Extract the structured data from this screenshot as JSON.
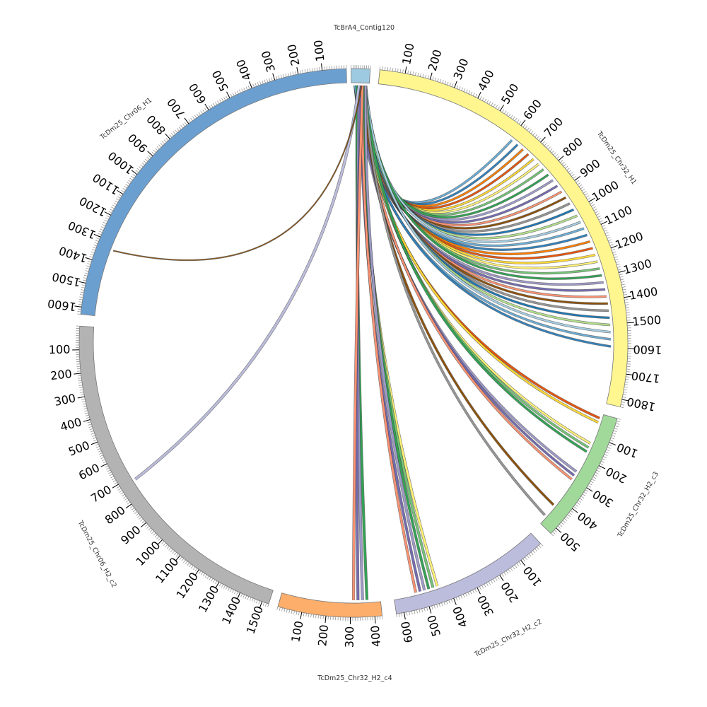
{
  "sequences": [
    {
      "name": "TcBrA4_Contig120",
      "color": "#9ecae1",
      "ticks": []
    },
    {
      "name": "TcDm25_Chr32_H1",
      "color": "#fff68f",
      "ticks": [
        "100",
        "200",
        "300",
        "400",
        "500",
        "600",
        "700",
        "800",
        "900",
        "1000",
        "1100",
        "1200",
        "1300",
        "1400",
        "1500",
        "1600",
        "1700",
        "1800"
      ]
    },
    {
      "name": "TcDm25_Chr32_H2_c3",
      "color": "#a1d99b",
      "ticks": [
        "100",
        "200",
        "300",
        "400",
        "500"
      ]
    },
    {
      "name": "TcDm25_Chr32_H2_c2",
      "color": "#bcbddc",
      "ticks": [
        "100",
        "200",
        "300",
        "400",
        "500",
        "600"
      ]
    },
    {
      "name": "TcDm25_Chr32_H2_c4",
      "color": "#fdae6b",
      "ticks": [
        "100",
        "200",
        "300",
        "400"
      ]
    },
    {
      "name": "TcDm25_Chr06_H2_c2",
      "color": "#b3b3b3",
      "ticks": [
        "100",
        "200",
        "300",
        "400",
        "500",
        "600",
        "700",
        "800",
        "900",
        "1000",
        "1100",
        "1200",
        "1300",
        "1400",
        "1500"
      ]
    },
    {
      "name": "TcDm25_Chr06_H1",
      "color": "#6a9fd0",
      "ticks": [
        "100",
        "200",
        "300",
        "400",
        "500",
        "600",
        "700",
        "800",
        "900",
        "1000",
        "1100",
        "1200",
        "1300",
        "1400",
        "1500",
        "1600"
      ]
    }
  ],
  "link_colors": [
    "#6baed6",
    "#3182bd",
    "#ff7f00",
    "#e6550d",
    "#fdd835",
    "#fff176",
    "#74c476",
    "#31a354",
    "#9e9ac8",
    "#756bb1",
    "#fc9272",
    "#8c510a",
    "#969696",
    "#1f78b4",
    "#b2df8a",
    "#a6cee3"
  ]
}
